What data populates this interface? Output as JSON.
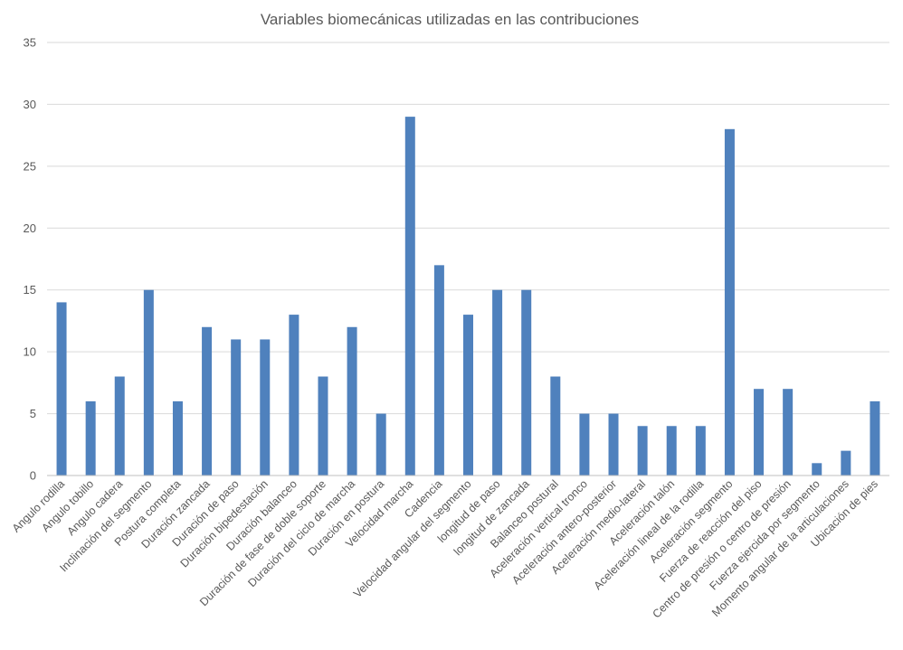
{
  "chart_data": {
    "type": "bar",
    "title": "Variables biomecánicas utilizadas en las contribuciones",
    "xlabel": "",
    "ylabel": "",
    "ylim": [
      0,
      35
    ],
    "yticks": [
      0,
      5,
      10,
      15,
      20,
      25,
      30,
      35
    ],
    "grid": true,
    "legend": "none",
    "color": "#4f81bd",
    "categories": [
      "Angulo rodilla",
      "Angulo tobillo",
      "Angulo cadera",
      "Inclinación del segmento",
      "Postura completa",
      "Duración zancada",
      "Duración de paso",
      "Duración bipedestación",
      "Duración balanceo",
      "Duración de fase de doble soporte",
      "Duración del ciclo de marcha",
      "Duración en postura",
      "Velocidad marcha",
      "Cadencia",
      "Velocidad angular del segmento",
      "longitud de paso",
      "longitud de zancada",
      "Balanceo postural",
      "Aceleración vertical tronco",
      "Aceleración antero-posterior",
      "Aceleración medio-lateral",
      "Aceleración talón",
      "Aceleración lineal de la rodilla",
      "Aceleración segmento",
      "Fuerza de reacción del piso",
      "Centro de presión o centro de presión",
      "Fuerza ejercida por segmento",
      "Momento angular de la articulaciones",
      "Ubicación de pies"
    ],
    "values": [
      14,
      6,
      8,
      15,
      6,
      12,
      11,
      11,
      13,
      8,
      12,
      5,
      29,
      17,
      13,
      15,
      15,
      8,
      5,
      5,
      4,
      4,
      4,
      28,
      7,
      7,
      1,
      2,
      6
    ]
  }
}
